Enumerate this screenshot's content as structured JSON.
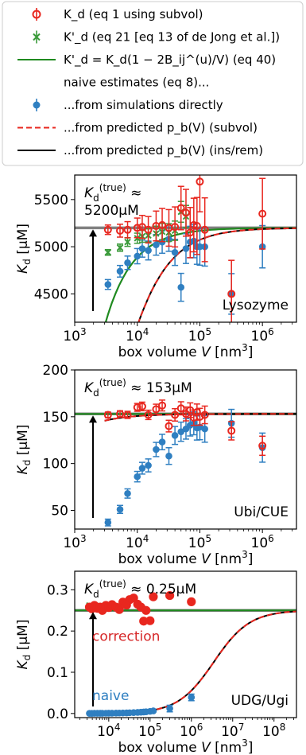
{
  "legend": {
    "items": [
      {
        "key": "kd_subvol",
        "label": "K_d (eq 1 using subvol)",
        "color": "#e8271f",
        "marker": "open-circle"
      },
      {
        "key": "kd_prime_21",
        "label": "K'_d (eq 21 [eq 13 of de Jong et al.])",
        "color": "#3a9a3a",
        "marker": "x"
      },
      {
        "key": "kd_prime_40",
        "label": "K'_d = K_d(1 − 2B_ij^(u)/V) (eq 40)",
        "color": "#1f8a1f",
        "marker": "line"
      },
      {
        "key": "naive_header",
        "label": "naive estimates (eq 8)...",
        "color": "",
        "marker": "none"
      },
      {
        "key": "naive_sim",
        "label": "...from simulations directly",
        "color": "#2f7fc1",
        "marker": "dot"
      },
      {
        "key": "pred_subvol",
        "label": "...from predicted p_b(V) (subvol)",
        "color": "#e8271f",
        "marker": "dashed"
      },
      {
        "key": "pred_insrem",
        "label": "...from predicted p_b(V) (ins/rem)",
        "color": "#000000",
        "marker": "line"
      }
    ]
  },
  "chart_data": [
    {
      "type": "scatter",
      "name": "Lysozyme",
      "true_label": "K_d^(true) ≈ 5200μM",
      "xlabel": "box volume V [nm^3]",
      "ylabel": "K_d [μM]",
      "xscale": "log",
      "xlim": [
        1000,
        3500000
      ],
      "ylim": [
        4200,
        5760
      ],
      "yticks": [
        4500,
        5000,
        5500
      ],
      "xticks": [
        1000,
        10000,
        100000,
        1000000
      ],
      "xtick_labels": [
        "10^3",
        "10^4",
        "10^5",
        "10^6"
      ],
      "true_value": 5200,
      "naive": {
        "x": [
          3400,
          5300,
          7000,
          10000,
          12000,
          15000,
          20000,
          25000,
          32000,
          40000,
          50000,
          60000,
          70000,
          80000,
          90000,
          100000,
          120000,
          320000,
          1000000
        ],
        "y": [
          4600,
          4740,
          4830,
          4900,
          4980,
          4960,
          5020,
          5050,
          5080,
          4940,
          4570,
          4980,
          5050,
          5060,
          5000,
          5000,
          5000,
          4500,
          5000
        ]
      },
      "kd": {
        "x": [
          3400,
          5300,
          7000,
          10000,
          12000,
          15000,
          20000,
          25000,
          32000,
          40000,
          50000,
          60000,
          70000,
          80000,
          90000,
          100000,
          120000,
          320000,
          1000000
        ],
        "y": [
          5180,
          5170,
          5180,
          5200,
          5210,
          5180,
          5220,
          5230,
          5200,
          5210,
          5410,
          5360,
          5150,
          5230,
          5220,
          5690,
          5180,
          4500,
          5350
        ]
      },
      "kd_prime": {
        "x": [
          3400,
          5300,
          7000,
          10000,
          12000,
          15000,
          20000,
          25000,
          32000,
          40000,
          50000,
          60000
        ],
        "y": [
          4940,
          4990,
          5050,
          5090,
          5110,
          5120,
          5140,
          5160,
          5150,
          5170,
          5370,
          5320
        ]
      },
      "curve_b": 2500,
      "label": "Lysozyme"
    },
    {
      "type": "scatter",
      "name": "Ubi/CUE",
      "true_label": "K_d^(true) ≈ 153μM",
      "xlabel": "box volume V [nm^3]",
      "ylabel": "K_d [μM]",
      "xscale": "log",
      "xlim": [
        1000,
        3500000
      ],
      "ylim": [
        30,
        200
      ],
      "yticks": [
        50,
        100,
        150,
        200
      ],
      "xticks": [
        1000,
        10000,
        100000,
        1000000
      ],
      "xtick_labels": [
        "10^3",
        "10^4",
        "10^5",
        "10^6"
      ],
      "true_value": 153,
      "naive": {
        "x": [
          3400,
          5300,
          7000,
          10000,
          12000,
          15000,
          20000,
          25000,
          32000,
          40000,
          50000,
          60000,
          70000,
          80000,
          90000,
          100000,
          120000,
          320000,
          1000000
        ],
        "y": [
          37,
          51,
          68,
          86,
          95,
          98,
          115,
          123,
          108,
          130,
          134,
          137,
          141,
          143,
          138,
          139,
          137,
          143,
          117
        ]
      },
      "kd": {
        "x": [
          3400,
          5300,
          7000,
          10000,
          12000,
          15000,
          20000,
          25000,
          32000,
          40000,
          50000,
          60000,
          70000,
          80000,
          90000,
          100000,
          120000,
          320000,
          1000000
        ],
        "y": [
          152,
          153,
          152,
          160,
          161,
          152,
          158,
          162,
          140,
          152,
          159,
          153,
          157,
          149,
          155,
          150,
          152,
          135,
          119
        ]
      },
      "curve_b": 150,
      "label": "Ubi/CUE"
    },
    {
      "type": "scatter",
      "name": "UDG/Ugi",
      "true_label": "K_d^(true) ≈ 0.25μM",
      "xlabel": "box volume V [nm^3]",
      "ylabel": "K_d [μM]",
      "xscale": "log",
      "xlim": [
        1500,
        350000000
      ],
      "ylim": [
        -0.01,
        0.345
      ],
      "yticks": [
        0.0,
        0.1,
        0.2,
        0.3
      ],
      "xticks": [
        10000,
        100000,
        1000000,
        10000000,
        100000000
      ],
      "xtick_labels": [
        "10^4",
        "10^5",
        "10^6",
        "10^7",
        "10^8"
      ],
      "true_value": 0.25,
      "naive": {
        "x": [
          3400,
          3900,
          4500,
          5300,
          6200,
          7000,
          8500,
          10000,
          12000,
          15000,
          18000,
          22000,
          27000,
          32000,
          40000,
          50000,
          60000,
          70000,
          80000,
          100000,
          120000,
          300000,
          1000000
        ],
        "y": [
          0.0003,
          0.0003,
          0.0004,
          0.0004,
          0.0005,
          0.0005,
          0.0006,
          0.0007,
          0.0008,
          0.0009,
          0.0011,
          0.0013,
          0.0015,
          0.0018,
          0.0022,
          0.0027,
          0.0032,
          0.0036,
          0.0041,
          0.0052,
          0.0062,
          0.012,
          0.039
        ]
      },
      "kd": {
        "x": [
          3400,
          3900,
          4500,
          5300,
          6200,
          7000,
          8500,
          10000,
          12000,
          15000,
          18000,
          22000,
          27000,
          32000,
          40000,
          50000,
          60000,
          70000,
          80000,
          100000,
          120000,
          300000,
          1000000
        ],
        "y": [
          0.258,
          0.254,
          0.262,
          0.255,
          0.258,
          0.25,
          0.262,
          0.257,
          0.264,
          0.258,
          0.252,
          0.27,
          0.263,
          0.276,
          0.28,
          0.265,
          0.258,
          0.224,
          0.25,
          0.225,
          0.283,
          0.286,
          0.271
        ]
      },
      "kd_prime": {
        "x": [
          3400,
          3900,
          4500,
          5300,
          6200,
          7000,
          8500,
          10000,
          12000,
          15000
        ],
        "y": [
          0.262,
          0.258,
          0.262,
          0.259,
          0.261,
          0.256,
          0.262,
          0.259,
          0.262,
          0.258
        ]
      },
      "curve_b": 3500000,
      "label": "UDG/Ugi",
      "annotations": {
        "correction": "correction",
        "naive": "naive"
      }
    }
  ]
}
